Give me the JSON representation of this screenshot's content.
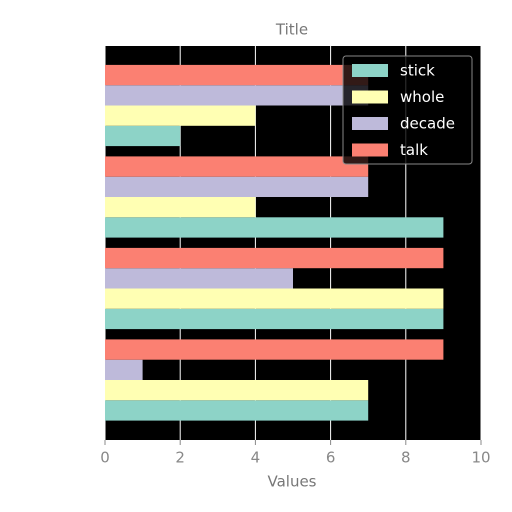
{
  "chart_data": {
    "type": "barh",
    "title": "Title",
    "xlabel": "Values",
    "categories": [
      null,
      null,
      null,
      null
    ],
    "series": [
      {
        "name": "stick",
        "color": "#8dd3c7",
        "values": [
          7,
          9,
          9,
          2
        ]
      },
      {
        "name": "whole",
        "color": "#ffffb3",
        "values": [
          7,
          9,
          4,
          4
        ]
      },
      {
        "name": "decade",
        "color": "#bebada",
        "values": [
          1,
          5,
          7,
          7
        ]
      },
      {
        "name": "talk",
        "color": "#fb8072",
        "values": [
          9,
          9,
          7,
          7
        ]
      }
    ],
    "xlim": [
      0,
      10
    ],
    "xticks": [
      0,
      2,
      4,
      6,
      8,
      10
    ],
    "grid": true,
    "legend": "upper right"
  }
}
